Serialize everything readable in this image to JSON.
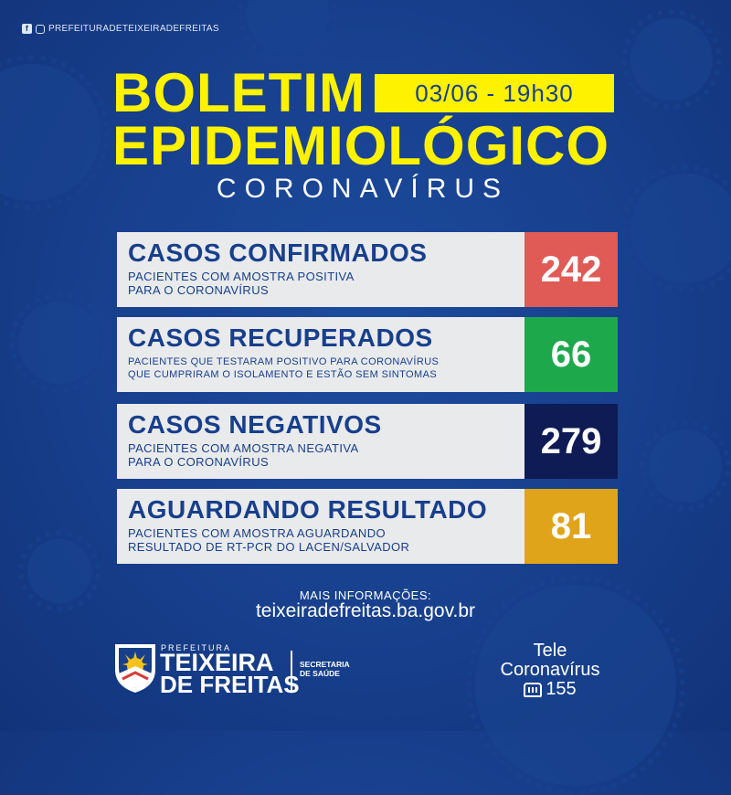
{
  "social": {
    "handle": "PREFEITURADETEIXEIRADEFREITAS",
    "icons": [
      "facebook-icon",
      "instagram-icon"
    ]
  },
  "header": {
    "title_line1": "BOLETIM",
    "title_line2": "EPIDEMIOLÓGICO",
    "date": "03/06 - 19h30",
    "subtitle": "CORONAVÍRUS"
  },
  "cards": [
    {
      "label": "CASOS CONFIRMADOS",
      "desc_line1": "PACIENTES COM AMOSTRA POSITIVA",
      "desc_line2": "PARA O CORONAVÍRUS",
      "value": "242",
      "color": "#e05a56"
    },
    {
      "label": "CASOS RECUPERADOS",
      "desc_line1": "PACIENTES QUE TESTARAM POSITIVO PARA CORONAVÍRUS",
      "desc_line2": "QUE CUMPRIRAM O ISOLAMENTO E ESTÃO SEM SINTOMAS",
      "value": "66",
      "color": "#1ea84c"
    },
    {
      "label": "CASOS NEGATIVOS",
      "desc_line1": "PACIENTES COM AMOSTRA NEGATIVA",
      "desc_line2": "PARA O CORONAVÍRUS",
      "value": "279",
      "color": "#0e1b55"
    },
    {
      "label": "AGUARDANDO RESULTADO",
      "desc_line1": "PACIENTES COM AMOSTRA AGUARDANDO",
      "desc_line2": "RESULTADO DE RT-PCR DO LACEN/SALVADOR",
      "value": "81",
      "color": "#e0a41a"
    }
  ],
  "footer": {
    "more_info": "MAIS INFORMAÇÕES:",
    "website": "teixeiradefreitas.ba.gov.br",
    "logo_pref": "PREFEITURA",
    "logo_line1": "TEIXEIRA",
    "logo_line2": "DE FREITAS",
    "secretaria_line1": "SECRETARIA",
    "secretaria_line2": "DE SAÚDE",
    "tele_line1": "Tele",
    "tele_line2": "Coronavírus",
    "tele_number": "155"
  },
  "colors": {
    "background": "#173f8c",
    "accent": "#fff200",
    "card_bg": "#e9eaec",
    "text_dark": "#173f8c"
  }
}
